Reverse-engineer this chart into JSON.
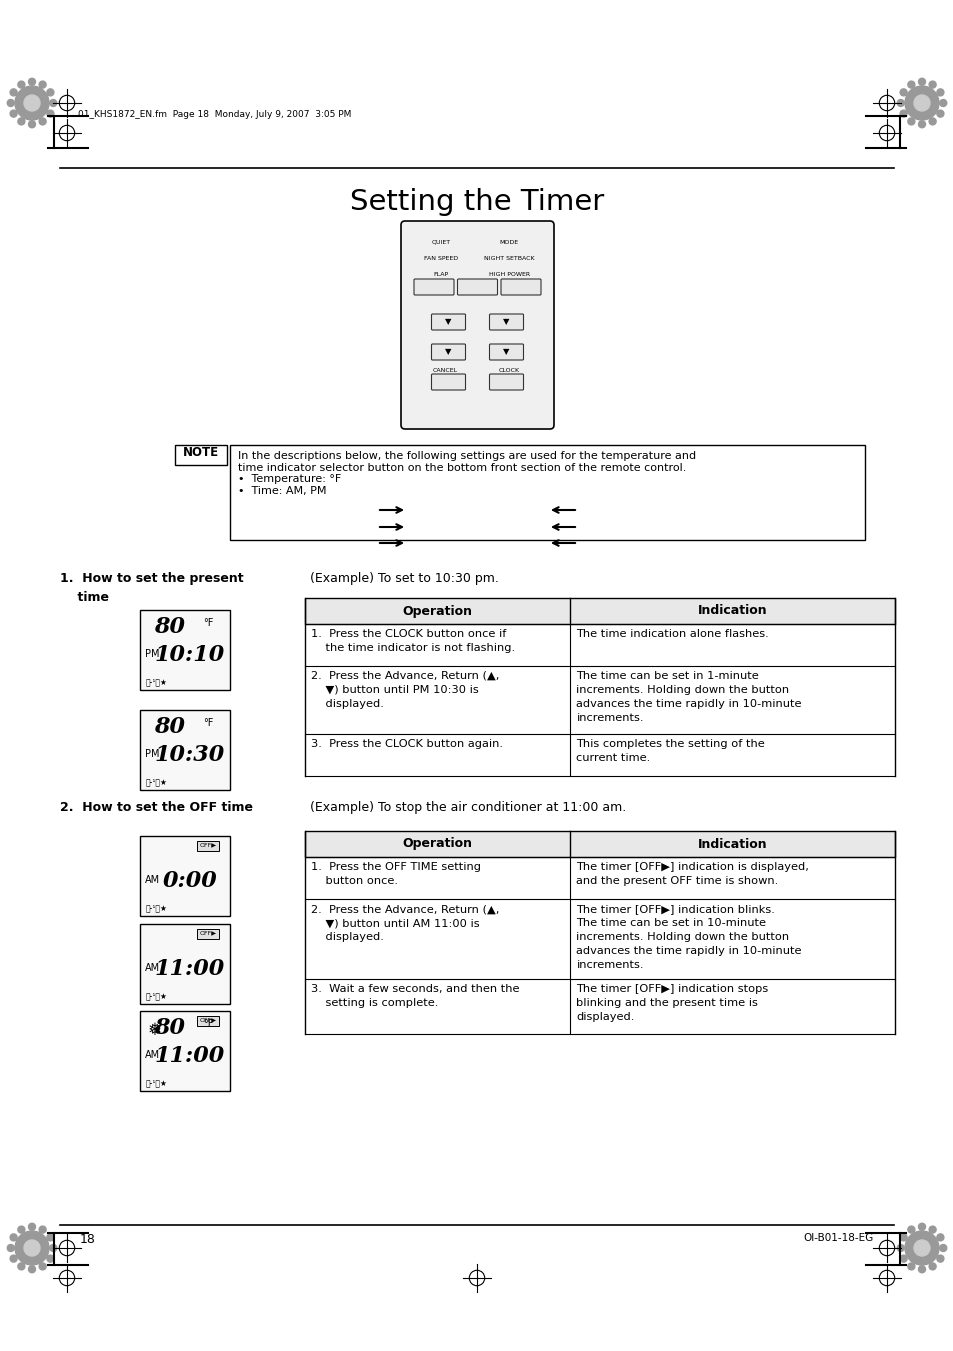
{
  "title": "Setting the Timer",
  "bg_color": "#ffffff",
  "text_color": "#000000",
  "page_number": "18",
  "footer_right": "OI-B01-18-EG",
  "header_text": "01_KHS1872_EN.fm  Page 18  Monday, July 9, 2007  3:05 PM",
  "note_text": "In the descriptions below, the following settings are used for the temperature and\ntime indicator selector button on the bottom front section of the remote control.\n•  Temperature: °F\n•  Time: AM, PM",
  "section1_heading": "1.  How to set the present\n    time",
  "section1_example": "(Example) To set to 10:30 pm.",
  "section2_heading": "2.  How to set the OFF time",
  "section2_example": "(Example) To stop the air conditioner at 11:00 am.",
  "table1_headers": [
    "Operation",
    "Indication"
  ],
  "table1_rows": [
    [
      "1.  Press the CLOCK button once if\n    the time indicator is not flashing.",
      "The time indication alone flashes."
    ],
    [
      "2.  Press the Advance, Return (▲,\n    ▼) button until PM 10:30 is\n    displayed.",
      "The time can be set in 1-minute\nincrements. Holding down the button\nadvances the time rapidly in 10-minute\nincrements."
    ],
    [
      "3.  Press the CLOCK button again.",
      "This completes the setting of the\ncurrent time."
    ]
  ],
  "table2_headers": [
    "Operation",
    "Indication"
  ],
  "table2_rows": [
    [
      "1.  Press the OFF TIME setting\n    button once.",
      "The timer ⧗ indication is displayed,\nand the present OFF time is shown."
    ],
    [
      "2.  Press the Advance, Return (▲,\n    ▼) button until AM 11:00 is\n    displayed.",
      "The timer ⧗ indication blinks.\nThe time can be set in 10-minute\nincrements. Holding down the button\nadvances the time rapidly in 10-minute\nincrements."
    ],
    [
      "3.  Wait a few seconds, and then the\n    setting is complete.",
      "The timer ⧗ indication stops\nblinking and the present time is\ndisplayed."
    ]
  ]
}
